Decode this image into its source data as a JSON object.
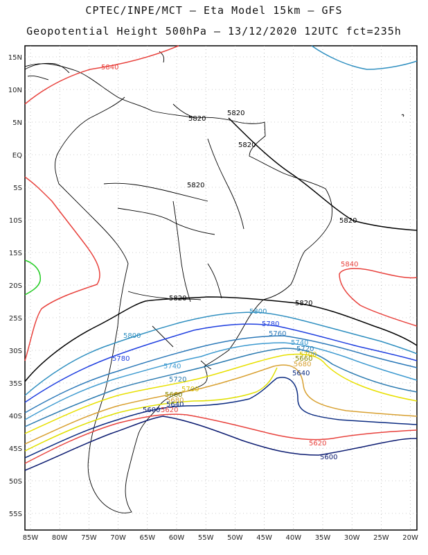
{
  "title_line1": "CPTEC/INPE/MCT –  Eta Model 15km – GFS",
  "title_line2": "Geopotential Height 500hPa – 13/12/2020 12UTC fct=235h",
  "axes": {
    "lon_labels": [
      "85W",
      "80W",
      "75W",
      "70W",
      "65W",
      "60W",
      "55W",
      "50W",
      "45W",
      "40W",
      "35W",
      "30W",
      "25W",
      "20W"
    ],
    "lat_labels": [
      "15N",
      "10N",
      "5N",
      "EQ",
      "5S",
      "10S",
      "15S",
      "20S",
      "25S",
      "30S",
      "35S",
      "40S",
      "45S",
      "50S",
      "55S"
    ]
  },
  "contours": [
    {
      "value": 5840,
      "label": "5840",
      "color": "#e8413c"
    },
    {
      "value": 5820,
      "label": "5820",
      "color": "#000000"
    },
    {
      "value": 5800,
      "label": "5800",
      "color": "#2f8fc0"
    },
    {
      "value": 5780,
      "label": "5780",
      "color": "#1f3fe0"
    },
    {
      "value": 5760,
      "label": "5760",
      "color": "#2a78b8"
    },
    {
      "value": 5740,
      "label": "5740",
      "color": "#3d9ad0"
    },
    {
      "value": 5720,
      "label": "5720",
      "color": "#2a7ab0"
    },
    {
      "value": 5700,
      "label": "5700",
      "color": "#e8e000"
    },
    {
      "value": 5680,
      "label": "5680",
      "color": "#d8a030"
    },
    {
      "value": 5660,
      "label": "5660",
      "color": "#e0e000"
    },
    {
      "value": 5640,
      "label": "5640",
      "color": "#0a2a80"
    },
    {
      "value": 5620,
      "label": "5620",
      "color": "#e8413c"
    },
    {
      "value": 5600,
      "label": "5600",
      "color": "#0a1a70"
    }
  ],
  "contour_labels": {
    "l5840a": "5840",
    "l5840b": "5840",
    "l5820a": "5820",
    "l5820b": "5820",
    "l5820c": "5820",
    "l5820d": "5820",
    "l5820e": "5820",
    "l5820f": "5820",
    "l5820g": "5820",
    "l5800a": "5800",
    "l5800b": "5800",
    "l5780a": "5780",
    "l5780b": "5780",
    "l5760a": "5760",
    "l5740a": "5740",
    "l5740b": "5740",
    "l5720a": "5720",
    "l5720b": "5720",
    "l5700a": "5700",
    "l5700b": "5700",
    "l5680a": "5680",
    "l5680b": "5680",
    "l5660a": "5660",
    "l5660b": "5660",
    "l5640a": "5640",
    "l5640b": "5640",
    "l5620a": "5620",
    "l5620b": "5620",
    "l5600a": "5600",
    "l5600b": "5600"
  }
}
